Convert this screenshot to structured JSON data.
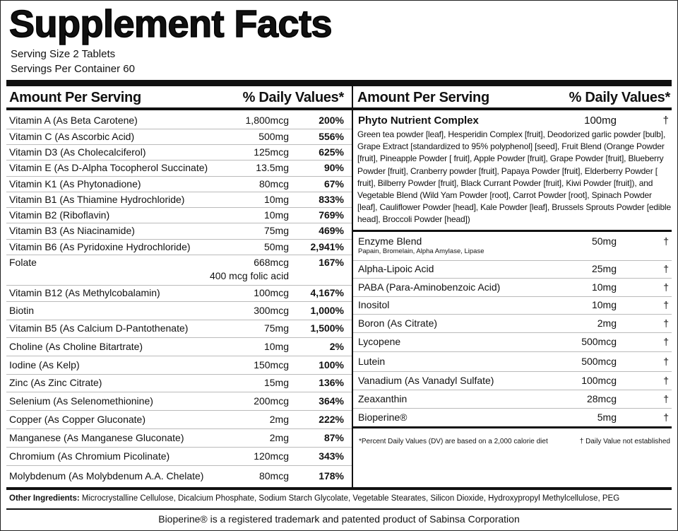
{
  "header": {
    "title": "Supplement Facts",
    "serving_size": "Serving Size 2 Tablets",
    "servings_per_container": "Servings Per Container 60"
  },
  "left": {
    "header": {
      "amount": "Amount Per Serving",
      "dv": "% Daily Values*"
    },
    "rows": [
      {
        "name": "Vitamin A (As Beta Carotene)",
        "amount": "1,800mcg",
        "dv": "200%"
      },
      {
        "name": "Vitamin C (As Ascorbic Acid)",
        "amount": "500mg",
        "dv": "556%"
      },
      {
        "name": "Vitamin D3 (As Cholecalciferol)",
        "amount": "125mcg",
        "dv": "625%"
      },
      {
        "name": "Vitamin E (As D-Alpha Tocopherol Succinate)",
        "amount": "13.5mg",
        "dv": "90%"
      },
      {
        "name": "Vitamin K1 (As Phytonadione)",
        "amount": "80mcg",
        "dv": "67%"
      },
      {
        "name": "Vitamin B1 (As Thiamine Hydrochloride)",
        "amount": "10mg",
        "dv": "833%"
      },
      {
        "name": "Vitamin B2 (Riboflavin)",
        "amount": "10mg",
        "dv": "769%"
      },
      {
        "name": "Vitamin B3 (As Niacinamide)",
        "amount": "75mg",
        "dv": "469%"
      },
      {
        "name": "Vitamin B6 (As Pyridoxine Hydrochloride)",
        "amount": "50mg",
        "dv": "2,941%"
      },
      {
        "name": "Folate",
        "amount": "668mcg",
        "note": "400 mcg folic acid",
        "dv": "167%"
      },
      {
        "name": "Vitamin B12 (As Methylcobalamin)",
        "amount": "100mcg",
        "dv": "4,167%"
      },
      {
        "name": "Biotin",
        "amount": "300mcg",
        "dv": "1,000%"
      },
      {
        "name": "Vitamin B5 (As Calcium D-Pantothenate)",
        "amount": "75mg",
        "dv": "1,500%"
      },
      {
        "name": "Choline (As Choline Bitartrate)",
        "amount": "10mg",
        "dv": "2%"
      },
      {
        "name": "Iodine (As Kelp)",
        "amount": "150mcg",
        "dv": "100%"
      },
      {
        "name": "Zinc (As Zinc Citrate)",
        "amount": "15mg",
        "dv": "136%"
      },
      {
        "name": "Selenium (As Selenomethionine)",
        "amount": "200mcg",
        "dv": "364%"
      },
      {
        "name": "Copper (As Copper Gluconate)",
        "amount": "2mg",
        "dv": "222%"
      },
      {
        "name": "Manganese (As Manganese Gluconate)",
        "amount": "2mg",
        "dv": "87%"
      },
      {
        "name": "Chromium (As Chromium Picolinate)",
        "amount": "120mcg",
        "dv": "343%"
      },
      {
        "name": "Molybdenum (As Molybdenum A.A. Chelate)",
        "amount": "80mcg",
        "dv": "178%"
      }
    ]
  },
  "right": {
    "header": {
      "amount": "Amount Per Serving",
      "dv": "% Daily Values*"
    },
    "complex": {
      "name": "Phyto Nutrient Complex",
      "amount": "100mg",
      "mark": "†",
      "description": "Green tea powder [leaf], Hesperidin Complex [fruit], Deodorized garlic powder [bulb], Grape Extract [standardized to 95% polyphenol] [seed], Fruit Blend (Orange Powder [fruit], Pineapple Powder [ fruit], Apple Powder [fruit], Grape Powder [fruit], Blueberry Powder [fruit], Cranberry powder [fruit], Papaya Powder [fruit], Elderberry Powder [ fruit], Bilberry Powder [fruit], Black Currant Powder [fruit], Kiwi Powder [fruit]), and Vegetable Blend (Wild Yam Powder [root], Carrot Powder [root], Spinach Powder [leaf], Cauliflower Powder [head], Kale Powder [leaf], Brussels Sprouts Powder [edible head], Broccoli Powder [head])"
    },
    "rows": [
      {
        "name": "Enzyme Blend",
        "detail": "Papain, Bromelain, Alpha Amylase, Lipase",
        "amount": "50mg",
        "mark": "†"
      },
      {
        "name": "Alpha-Lipoic Acid",
        "amount": "25mg",
        "mark": "†"
      },
      {
        "name": "PABA (Para-Aminobenzoic Acid)",
        "amount": "10mg",
        "mark": "†"
      },
      {
        "name": "Inositol",
        "amount": "10mg",
        "mark": "†"
      },
      {
        "name": "Boron (As Citrate)",
        "amount": "2mg",
        "mark": "†"
      },
      {
        "name": "Lycopene",
        "amount": "500mcg",
        "mark": "†"
      },
      {
        "name": "Lutein",
        "amount": "500mcg",
        "mark": "†"
      },
      {
        "name": "Vanadium (As Vanadyl Sulfate)",
        "amount": "100mcg",
        "mark": "†"
      },
      {
        "name": "Zeaxanthin",
        "amount": "28mcg",
        "mark": "†"
      },
      {
        "name": "Bioperine®",
        "amount": "5mg",
        "mark": "†"
      }
    ],
    "footnotes": {
      "dv": "*Percent Daily Values (DV) are based on a 2,000 calorie diet",
      "dagger": "† Daily Value not established"
    }
  },
  "other_ingredients": {
    "label": "Other Ingredients:",
    "text": "Microcrystalline Cellulose, Dicalcium Phosphate, Sodium Starch Glycolate, Vegetable Stearates, Silicon Dioxide, Hydroxypropyl Methylcellulose, PEG"
  },
  "trademark": "Bioperine® is a registered trademark and patented product of Sabinsa Corporation"
}
